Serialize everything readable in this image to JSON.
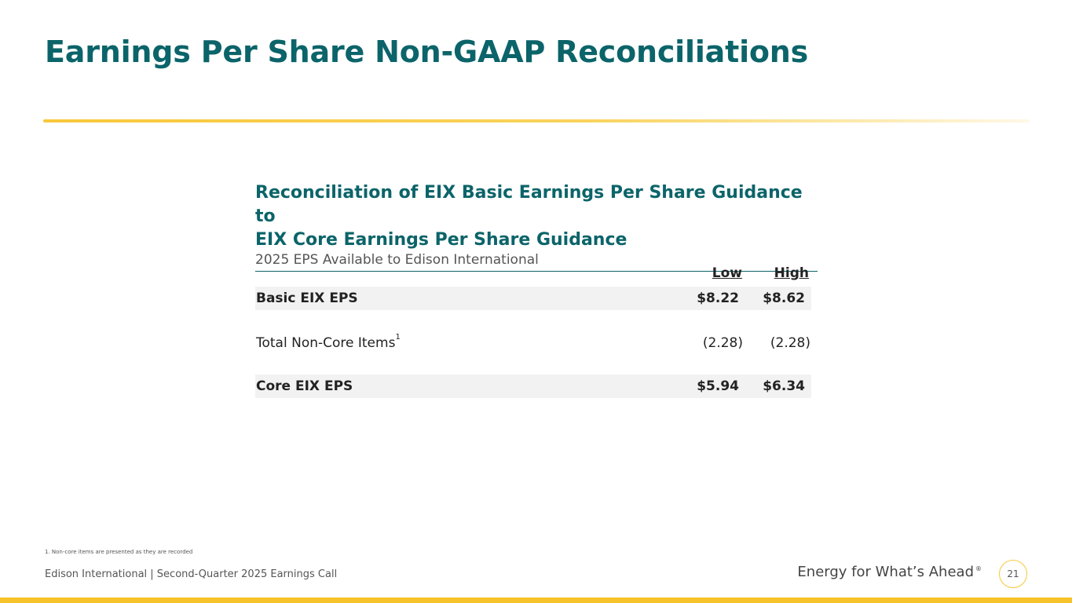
{
  "slide": {
    "title": "Earnings Per Share Non-GAAP Reconciliations"
  },
  "panel": {
    "heading_line1": "Reconciliation of EIX Basic Earnings Per Share Guidance to",
    "heading_line2": "EIX Core Earnings Per Share Guidance",
    "subheading": "2025 EPS Available to Edison International",
    "columns": [
      "Low",
      "High"
    ],
    "rows": [
      {
        "label": "Basic EIX EPS",
        "low": "$8.22",
        "high": "$8.62"
      },
      {
        "label": "Total Non-Core Items",
        "superscript": "1",
        "low": "(2.28)",
        "high": "(2.28)"
      },
      {
        "label": "Core EIX EPS",
        "low": "$5.94",
        "high": "$6.34"
      }
    ]
  },
  "footnote": "1.  Non-core items are presented as they are recorded",
  "footer": {
    "left_text": "Edison International |  Second-Quarter 2025 Earnings Call",
    "tagline": "Energy for What’s Ahead",
    "tagline_mark": "®",
    "page_number": "21"
  },
  "colors": {
    "teal": "#0b6469",
    "gold": "#f7c22a",
    "row_shade": "#f2f2f2"
  }
}
